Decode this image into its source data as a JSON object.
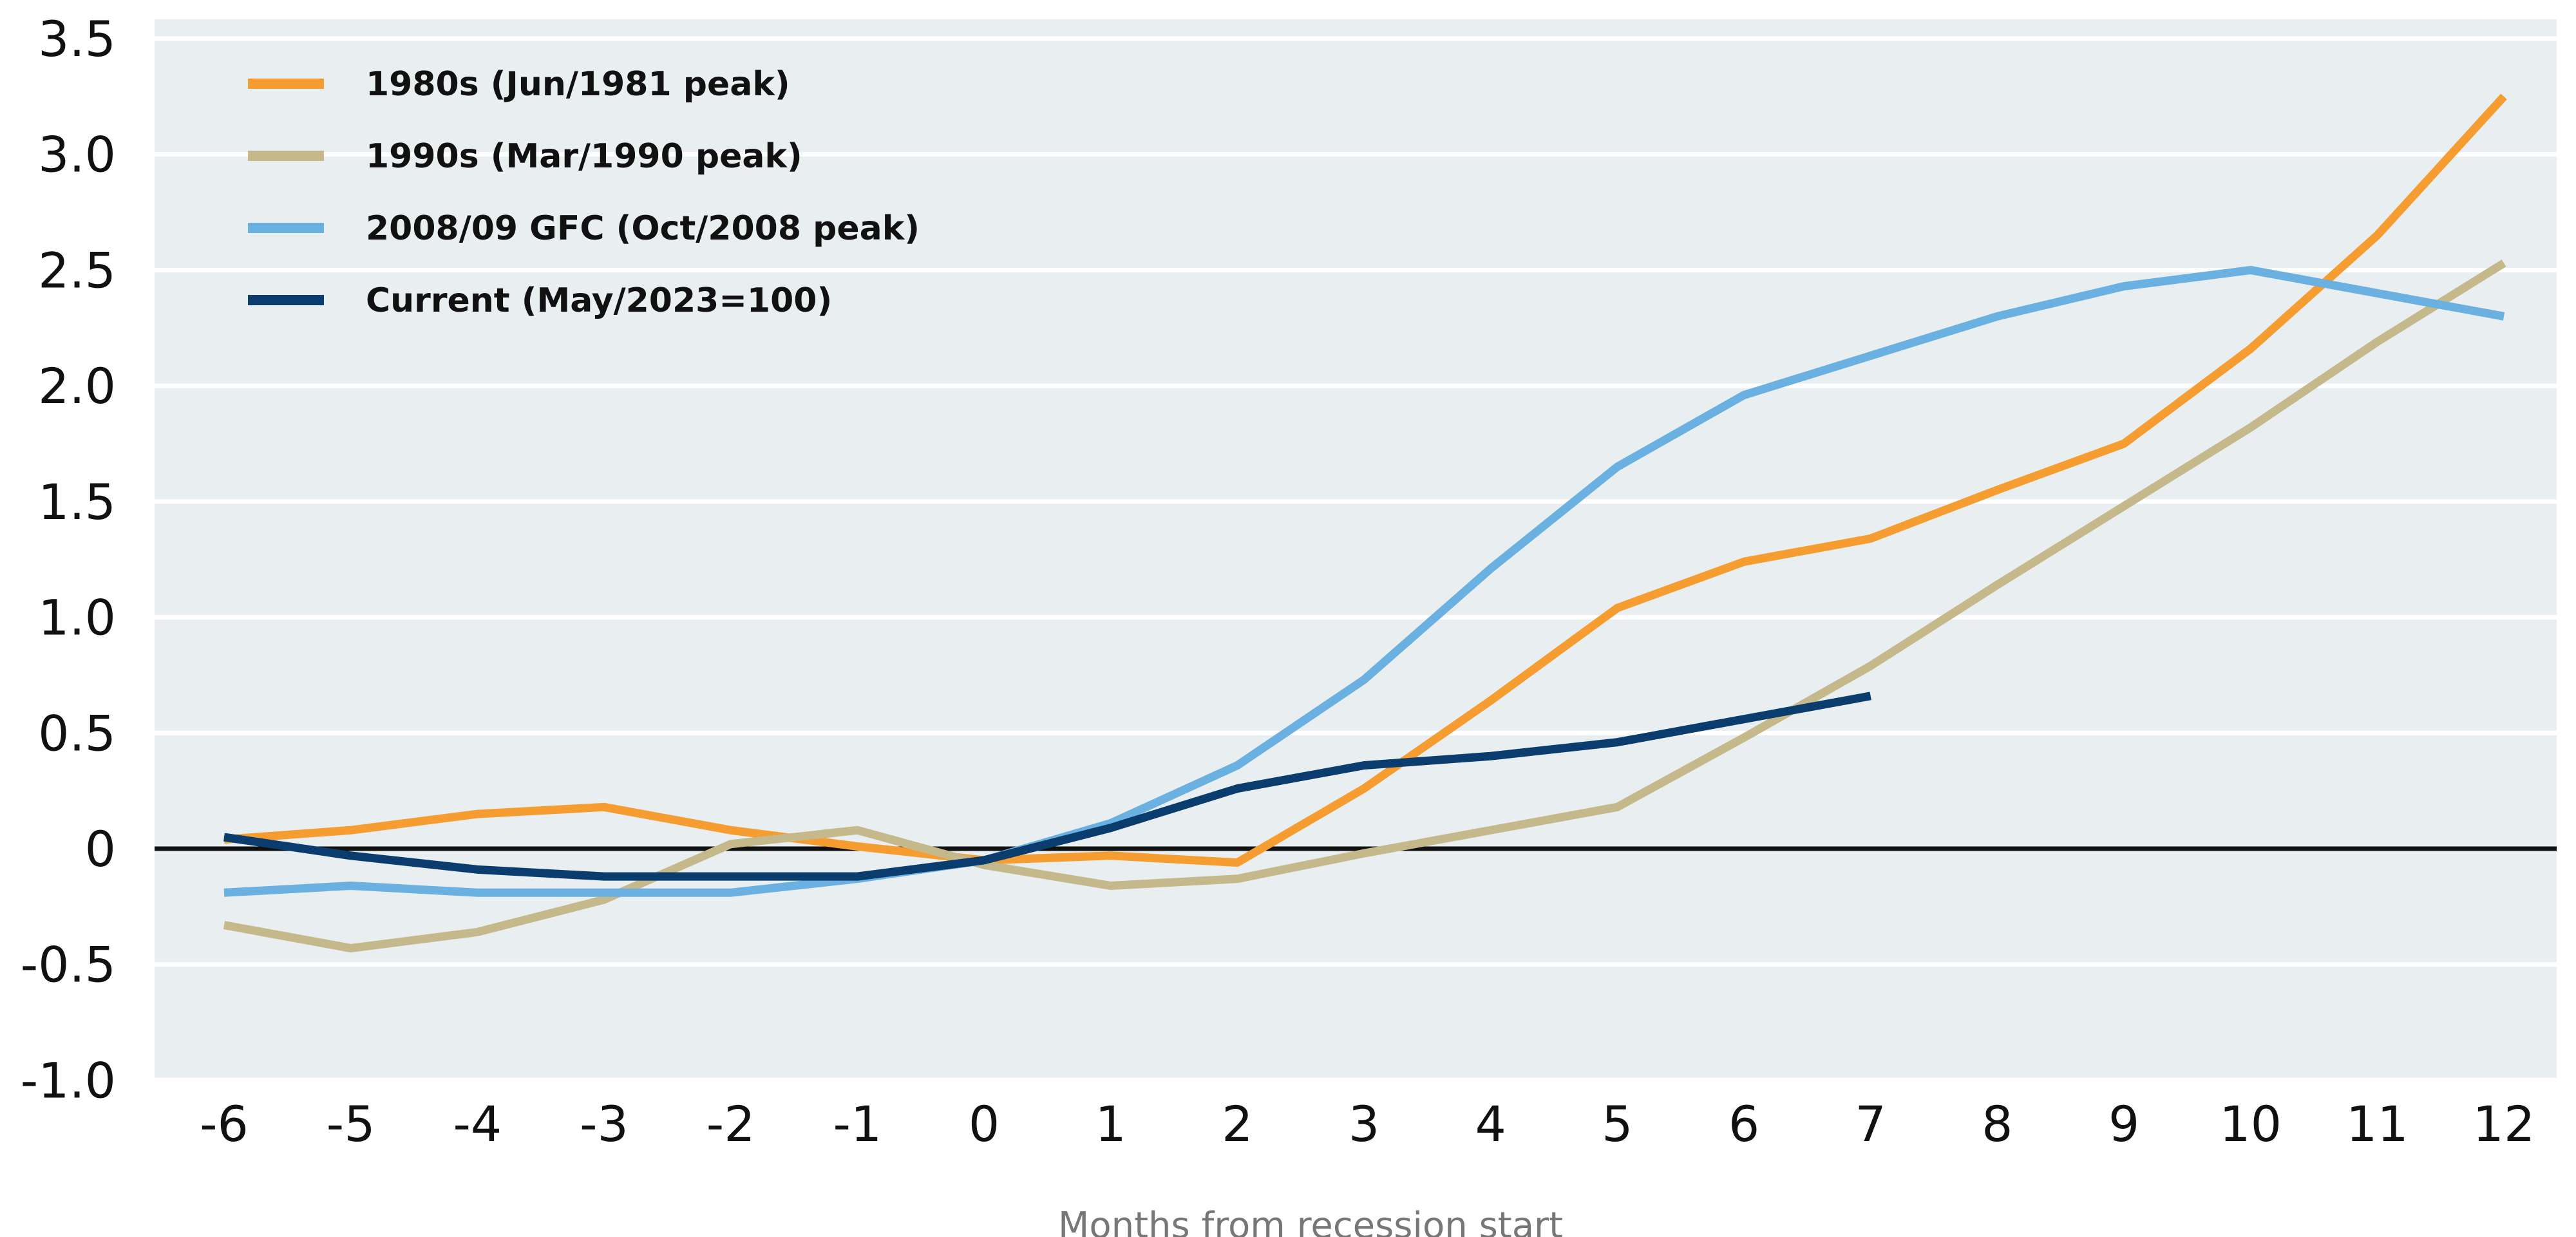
{
  "chart_data": {
    "type": "line",
    "title": "",
    "xlabel": "Months from recession start",
    "ylabel": "",
    "x": [
      -6,
      -5,
      -4,
      -3,
      -2,
      -1,
      0,
      1,
      2,
      3,
      4,
      5,
      6,
      7,
      8,
      9,
      10,
      11,
      12
    ],
    "x_tick_labels": [
      "-6",
      "-5",
      "-4",
      "-3",
      "-2",
      "-1",
      "0",
      "1",
      "2",
      "3",
      "4",
      "5",
      "6",
      "7",
      "8",
      "9",
      "10",
      "11",
      "12"
    ],
    "y_tick_values": [
      3.5,
      3.0,
      2.5,
      2.0,
      1.5,
      1.0,
      0.5,
      0,
      -0.5,
      -1.0
    ],
    "y_tick_labels": [
      "3.5",
      "3.0",
      "2.5",
      "2.0",
      "1.5",
      "1.0",
      "0.5",
      "0",
      "-0.5",
      "-1.0"
    ],
    "xlim": [
      -6.55,
      12.4
    ],
    "ylim": [
      -1.0,
      3.6
    ],
    "grid": true,
    "legend_position": "top-left",
    "colors": {
      "background": "#e9eef0",
      "grid": "#ffffff",
      "zero_line": "#111111"
    },
    "series": [
      {
        "name": "1980s (Jun/1981 peak)",
        "color": "#f59d31",
        "x": [
          -6,
          -5,
          -4,
          -3,
          -2,
          -1,
          0,
          1,
          2,
          3,
          4,
          5,
          6,
          7,
          8,
          9,
          10,
          11,
          12
        ],
        "values": [
          0.04,
          0.08,
          0.15,
          0.18,
          0.08,
          0.01,
          -0.05,
          -0.03,
          -0.06,
          0.26,
          0.64,
          1.04,
          1.24,
          1.34,
          1.55,
          1.75,
          2.16,
          2.65,
          3.25
        ]
      },
      {
        "name": "1990s (Mar/1990 peak)",
        "color": "#c5b98c",
        "x": [
          -6,
          -5,
          -4,
          -3,
          -2,
          -1,
          0,
          1,
          2,
          3,
          4,
          5,
          6,
          7,
          8,
          9,
          10,
          11,
          12
        ],
        "values": [
          -0.33,
          -0.43,
          -0.36,
          -0.22,
          0.02,
          0.08,
          -0.07,
          -0.16,
          -0.13,
          -0.02,
          0.08,
          0.18,
          0.48,
          0.79,
          1.14,
          1.48,
          1.82,
          2.19,
          2.53
        ]
      },
      {
        "name": "2008/09 GFC (Oct/2008 peak)",
        "color": "#6ab0e0",
        "x": [
          -6,
          -5,
          -4,
          -3,
          -2,
          -1,
          0,
          1,
          2,
          3,
          4,
          5,
          6,
          7,
          8,
          9,
          10,
          11,
          12
        ],
        "values": [
          -0.19,
          -0.16,
          -0.19,
          -0.19,
          -0.19,
          -0.13,
          -0.05,
          0.11,
          0.36,
          0.73,
          1.21,
          1.65,
          1.96,
          2.13,
          2.3,
          2.43,
          2.5,
          2.4,
          2.3
        ]
      },
      {
        "name": "Current (May/2023=100)",
        "color": "#0a3d6e",
        "x": [
          -6,
          -5,
          -4,
          -3,
          -2,
          -1,
          0,
          1,
          2,
          3,
          4,
          5,
          6,
          7
        ],
        "values": [
          0.05,
          -0.03,
          -0.09,
          -0.12,
          -0.12,
          -0.12,
          -0.05,
          0.09,
          0.26,
          0.36,
          0.4,
          0.46,
          0.56,
          0.66
        ]
      }
    ]
  }
}
